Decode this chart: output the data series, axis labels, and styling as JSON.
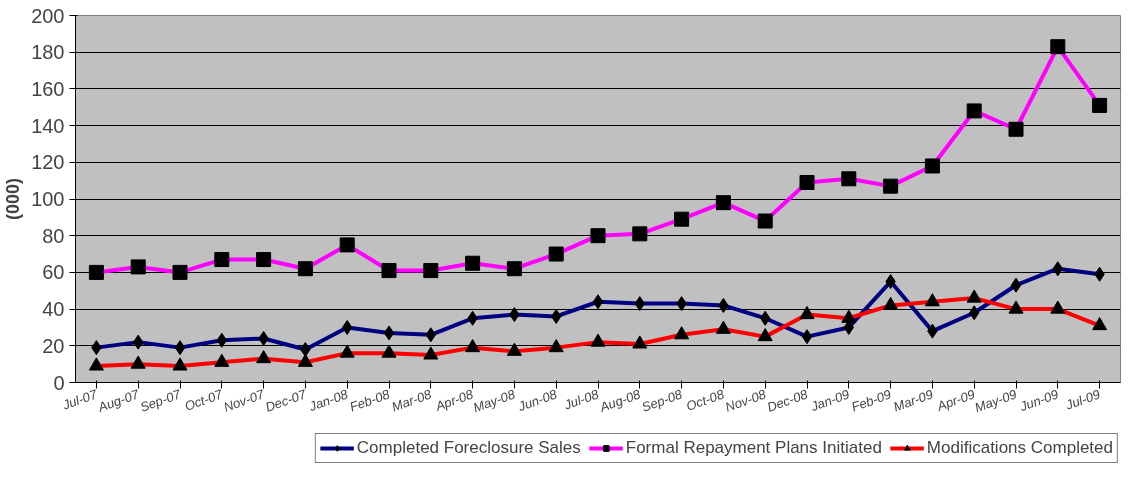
{
  "chart_data": {
    "type": "line",
    "ylabel": "(000)",
    "categories": [
      "Jul-07",
      "Aug-07",
      "Sep-07",
      "Oct-07",
      "Nov-07",
      "Dec-07",
      "Jan-08",
      "Feb-08",
      "Mar-08",
      "Apr-08",
      "May-08",
      "Jun-08",
      "Jul-08",
      "Aug-08",
      "Sep-08",
      "Oct-08",
      "Nov-08",
      "Dec-08",
      "Jan-09",
      "Feb-09",
      "Mar-09",
      "Apr-09",
      "May-09",
      "Jun-09",
      "Jul-09"
    ],
    "series": [
      {
        "name": "Completed Foreclosure Sales",
        "color": "#000080",
        "marker": "diamond",
        "values": [
          19,
          22,
          19,
          23,
          24,
          18,
          30,
          27,
          26,
          35,
          37,
          36,
          44,
          43,
          43,
          42,
          35,
          25,
          30,
          55,
          28,
          38,
          53,
          62,
          59
        ]
      },
      {
        "name": "Formal Repayment Plans Initiated",
        "color": "#ff00ff",
        "marker": "square",
        "values": [
          60,
          63,
          60,
          67,
          67,
          62,
          75,
          61,
          61,
          65,
          62,
          70,
          80,
          81,
          89,
          98,
          88,
          109,
          111,
          107,
          118,
          148,
          138,
          183,
          151
        ]
      },
      {
        "name": "Modifications Completed",
        "color": "#ff0000",
        "marker": "triangle",
        "values": [
          9,
          10,
          9,
          11,
          13,
          11,
          16,
          16,
          15,
          19,
          17,
          19,
          22,
          21,
          26,
          29,
          25,
          37,
          35,
          42,
          44,
          46,
          40,
          40,
          31
        ]
      }
    ],
    "ylim": [
      0,
      200
    ],
    "yticks": [
      0,
      20,
      40,
      60,
      80,
      100,
      120,
      140,
      160,
      180,
      200
    ],
    "grid": "y",
    "legend": "bottom",
    "line_style": "solid"
  }
}
